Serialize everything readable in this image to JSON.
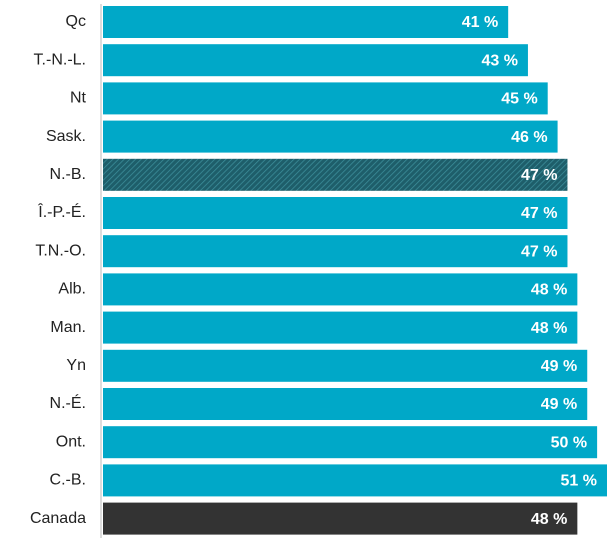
{
  "chart_data": {
    "type": "bar",
    "orientation": "horizontal",
    "categories": [
      "Qc",
      "T.-N.-L.",
      "Nt",
      "Sask.",
      "N.-B.",
      "Î.-P.-É.",
      "T.N.-O.",
      "Alb.",
      "Man.",
      "Yn",
      "N.-É.",
      "Ont.",
      "C.-B.",
      "Canada"
    ],
    "values": [
      41,
      43,
      45,
      46,
      47,
      47,
      47,
      48,
      48,
      49,
      49,
      50,
      51,
      48
    ],
    "value_labels": [
      "41 %",
      "43 %",
      "45 %",
      "46 %",
      "47 %",
      "47 %",
      "47 %",
      "48 %",
      "48 %",
      "49 %",
      "49 %",
      "50 %",
      "51 %",
      "48 %"
    ],
    "colors": [
      "#00a8c8",
      "#00a8c8",
      "#00a8c8",
      "#00a8c8",
      "#1e5e6a",
      "#00a8c8",
      "#00a8c8",
      "#00a8c8",
      "#00a8c8",
      "#00a8c8",
      "#00a8c8",
      "#00a8c8",
      "#00a8c8",
      "#333333"
    ],
    "hatched_categories": [
      "N.-B."
    ]
  }
}
